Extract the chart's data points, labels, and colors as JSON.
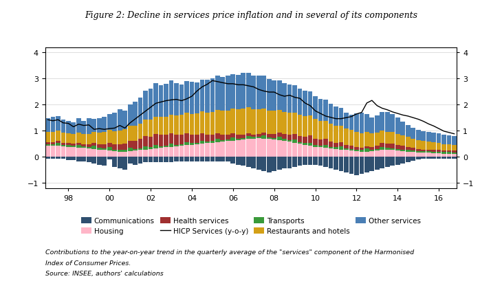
{
  "title": "Figure 2: Decline in services price inflation and in several of its components",
  "title_fontsize": 9,
  "footnote1": "Contributions to the year-on-year trend in the quarterly average of the \"services\" component of the Harmonised",
  "footnote2": "Index of Consumer Prices.",
  "footnote3": "Source: INSEE, authors' calculations",
  "xlim": [
    -0.5,
    79.5
  ],
  "ylim": [
    -1.2,
    4.2
  ],
  "yticks": [
    -1,
    0,
    1,
    2,
    3,
    4
  ],
  "xtick_labels": [
    "98",
    "00",
    "02",
    "04",
    "06",
    "08",
    "10",
    "12",
    "14",
    "16"
  ],
  "xtick_positions": [
    4,
    12,
    20,
    28,
    36,
    44,
    52,
    60,
    68,
    76
  ],
  "colors": {
    "communications": "#2F4F6F",
    "housing": "#FFB6C8",
    "health": "#A03030",
    "transports": "#3A9A3A",
    "restaurants": "#D4A017",
    "other": "#4A7FB5",
    "line": "#000000"
  },
  "bar_width": 0.9,
  "communications": [
    -0.08,
    -0.08,
    -0.08,
    -0.08,
    -0.12,
    -0.12,
    -0.18,
    -0.18,
    -0.22,
    -0.25,
    -0.3,
    -0.35,
    -0.1,
    -0.4,
    -0.45,
    -0.5,
    -0.25,
    -0.3,
    -0.25,
    -0.2,
    -0.2,
    -0.2,
    -0.2,
    -0.2,
    -0.2,
    -0.18,
    -0.18,
    -0.18,
    -0.18,
    -0.18,
    -0.18,
    -0.18,
    -0.18,
    -0.18,
    -0.18,
    -0.18,
    -0.25,
    -0.3,
    -0.35,
    -0.4,
    -0.45,
    -0.5,
    -0.55,
    -0.6,
    -0.55,
    -0.5,
    -0.45,
    -0.45,
    -0.4,
    -0.35,
    -0.3,
    -0.3,
    -0.3,
    -0.35,
    -0.4,
    -0.45,
    -0.5,
    -0.55,
    -0.6,
    -0.65,
    -0.7,
    -0.65,
    -0.6,
    -0.55,
    -0.5,
    -0.45,
    -0.4,
    -0.35,
    -0.3,
    -0.25,
    -0.2,
    -0.15,
    -0.1,
    -0.08,
    -0.08,
    -0.08,
    -0.08,
    -0.08,
    -0.08,
    -0.08
  ],
  "housing": [
    0.42,
    0.42,
    0.42,
    0.4,
    0.38,
    0.36,
    0.34,
    0.34,
    0.32,
    0.3,
    0.28,
    0.26,
    0.24,
    0.22,
    0.2,
    0.2,
    0.22,
    0.24,
    0.26,
    0.28,
    0.3,
    0.32,
    0.34,
    0.36,
    0.38,
    0.4,
    0.42,
    0.44,
    0.46,
    0.48,
    0.5,
    0.52,
    0.54,
    0.56,
    0.58,
    0.6,
    0.62,
    0.64,
    0.66,
    0.68,
    0.7,
    0.72,
    0.7,
    0.68,
    0.66,
    0.64,
    0.62,
    0.58,
    0.54,
    0.5,
    0.46,
    0.42,
    0.38,
    0.36,
    0.34,
    0.32,
    0.3,
    0.28,
    0.26,
    0.24,
    0.22,
    0.2,
    0.2,
    0.22,
    0.24,
    0.26,
    0.28,
    0.26,
    0.24,
    0.22,
    0.2,
    0.18,
    0.16,
    0.15,
    0.15,
    0.14,
    0.13,
    0.12,
    0.12,
    0.11
  ],
  "health": [
    0.08,
    0.08,
    0.08,
    0.08,
    0.08,
    0.08,
    0.08,
    0.08,
    0.1,
    0.12,
    0.14,
    0.16,
    0.18,
    0.2,
    0.22,
    0.25,
    0.28,
    0.32,
    0.36,
    0.4,
    0.42,
    0.44,
    0.44,
    0.42,
    0.4,
    0.38,
    0.36,
    0.34,
    0.32,
    0.3,
    0.28,
    0.26,
    0.24,
    0.22,
    0.2,
    0.18,
    0.16,
    0.14,
    0.12,
    0.1,
    0.08,
    0.08,
    0.1,
    0.12,
    0.14,
    0.16,
    0.18,
    0.2,
    0.22,
    0.24,
    0.26,
    0.28,
    0.26,
    0.24,
    0.22,
    0.2,
    0.18,
    0.16,
    0.14,
    0.12,
    0.1,
    0.08,
    0.08,
    0.1,
    0.12,
    0.14,
    0.16,
    0.18,
    0.16,
    0.14,
    0.12,
    0.1,
    0.08,
    0.07,
    0.07,
    0.07,
    0.07,
    0.07,
    0.07,
    0.07
  ],
  "transports": [
    0.06,
    0.06,
    0.12,
    0.06,
    0.06,
    0.06,
    0.12,
    0.06,
    0.06,
    0.12,
    0.06,
    0.06,
    0.12,
    0.06,
    0.06,
    0.06,
    0.12,
    0.06,
    0.06,
    0.12,
    0.06,
    0.12,
    0.06,
    0.06,
    0.12,
    0.06,
    0.06,
    0.12,
    0.06,
    0.06,
    0.12,
    0.06,
    0.06,
    0.12,
    0.06,
    0.06,
    0.12,
    0.06,
    0.06,
    0.12,
    0.06,
    0.06,
    0.12,
    0.06,
    0.06,
    0.12,
    0.06,
    0.06,
    0.12,
    0.06,
    0.06,
    0.12,
    0.06,
    0.06,
    0.12,
    0.06,
    0.06,
    0.12,
    0.06,
    0.06,
    0.06,
    0.06,
    0.12,
    0.06,
    0.06,
    0.12,
    0.06,
    0.06,
    0.06,
    0.06,
    0.06,
    0.06,
    0.06,
    0.06,
    0.06,
    0.06,
    0.06,
    0.06,
    0.06,
    0.06
  ],
  "restaurants": [
    0.38,
    0.38,
    0.38,
    0.38,
    0.38,
    0.38,
    0.38,
    0.38,
    0.4,
    0.42,
    0.44,
    0.46,
    0.48,
    0.5,
    0.52,
    0.54,
    0.56,
    0.58,
    0.6,
    0.62,
    0.64,
    0.66,
    0.68,
    0.7,
    0.72,
    0.74,
    0.76,
    0.78,
    0.8,
    0.82,
    0.84,
    0.86,
    0.88,
    0.9,
    0.92,
    0.94,
    0.96,
    0.98,
    1.0,
    1.0,
    0.98,
    0.96,
    0.94,
    0.92,
    0.9,
    0.88,
    0.86,
    0.84,
    0.82,
    0.8,
    0.78,
    0.76,
    0.74,
    0.72,
    0.7,
    0.68,
    0.66,
    0.64,
    0.62,
    0.6,
    0.58,
    0.56,
    0.54,
    0.52,
    0.5,
    0.48,
    0.46,
    0.44,
    0.42,
    0.4,
    0.38,
    0.36,
    0.34,
    0.32,
    0.3,
    0.28,
    0.26,
    0.24,
    0.22,
    0.2
  ],
  "other": [
    0.55,
    0.6,
    0.55,
    0.5,
    0.48,
    0.44,
    0.55,
    0.52,
    0.6,
    0.48,
    0.55,
    0.58,
    0.62,
    0.72,
    0.82,
    0.72,
    0.82,
    0.9,
    1.0,
    1.1,
    1.2,
    1.28,
    1.22,
    1.26,
    1.3,
    1.25,
    1.18,
    1.22,
    1.24,
    1.18,
    1.22,
    1.26,
    1.28,
    1.32,
    1.3,
    1.34,
    1.3,
    1.32,
    1.38,
    1.32,
    1.3,
    1.28,
    1.24,
    1.2,
    1.18,
    1.14,
    1.1,
    1.08,
    1.04,
    1.0,
    0.96,
    0.92,
    0.88,
    0.84,
    0.8,
    0.76,
    0.72,
    0.68,
    0.62,
    0.58,
    0.7,
    0.8,
    0.7,
    0.6,
    0.66,
    0.72,
    0.76,
    0.7,
    0.62,
    0.52,
    0.46,
    0.42,
    0.4,
    0.38,
    0.38,
    0.38,
    0.37,
    0.36,
    0.36,
    0.35
  ],
  "hicp_line": [
    1.42,
    1.38,
    1.42,
    1.3,
    1.28,
    1.15,
    1.25,
    1.2,
    1.22,
    1.05,
    1.08,
    1.05,
    1.08,
    1.1,
    1.2,
    1.1,
    1.3,
    1.45,
    1.6,
    1.75,
    1.9,
    2.05,
    2.1,
    2.15,
    2.18,
    2.2,
    2.15,
    2.22,
    2.32,
    2.52,
    2.68,
    2.78,
    2.92,
    2.88,
    2.84,
    2.8,
    2.8,
    2.76,
    2.76,
    2.72,
    2.68,
    2.58,
    2.52,
    2.48,
    2.48,
    2.38,
    2.32,
    2.36,
    2.28,
    2.24,
    2.06,
    1.96,
    1.76,
    1.66,
    1.56,
    1.51,
    1.46,
    1.46,
    1.5,
    1.54,
    1.64,
    1.7,
    2.06,
    2.16,
    1.96,
    1.86,
    1.8,
    1.72,
    1.66,
    1.6,
    1.56,
    1.5,
    1.44,
    1.36,
    1.26,
    1.18,
    1.08,
    0.98,
    0.93,
    0.88
  ]
}
